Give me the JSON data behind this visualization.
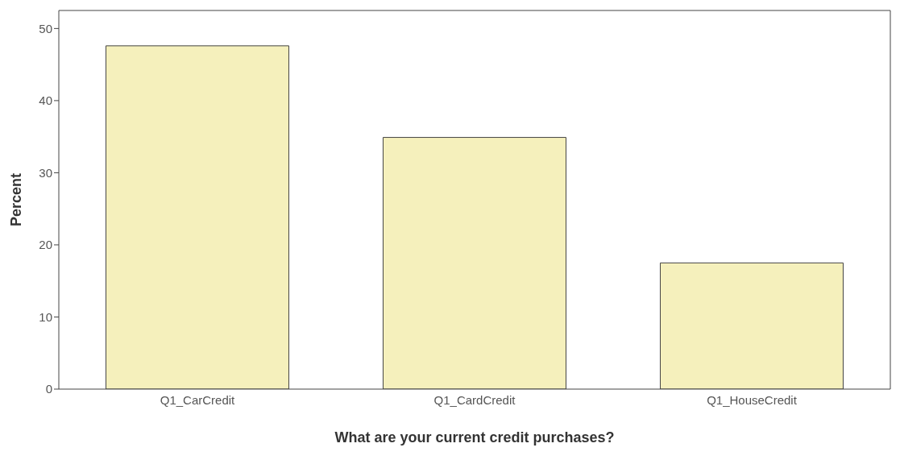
{
  "chart_data": {
    "type": "bar",
    "xlabel": "What are your current credit purchases?",
    "ylabel": "Percent",
    "categories": [
      "Q1_CarCredit",
      "Q1_CardCredit",
      "Q1_HouseCredit"
    ],
    "values": [
      47.6,
      34.9,
      17.5
    ],
    "color": "#f5f0bc",
    "ylim": [
      0,
      52.5
    ],
    "yticks": [
      0,
      10,
      20,
      30,
      40,
      50
    ]
  }
}
